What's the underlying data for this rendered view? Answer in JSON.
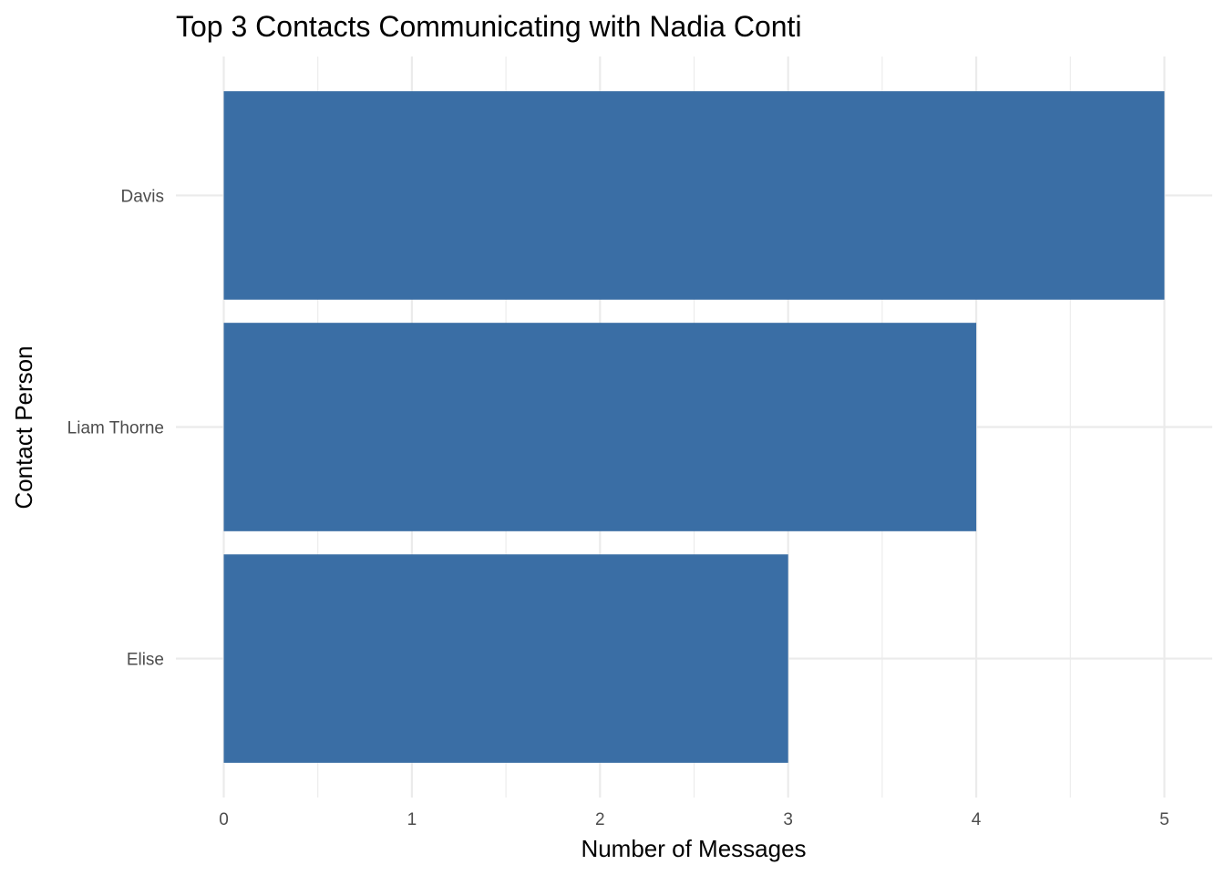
{
  "chart_data": {
    "type": "bar",
    "orientation": "horizontal",
    "title": "Top 3 Contacts Communicating with Nadia Conti",
    "xlabel": "Number of Messages",
    "ylabel": "Contact Person",
    "categories": [
      "Davis",
      "Liam Thorne",
      "Elise"
    ],
    "values": [
      5,
      4,
      3
    ],
    "xlim": [
      0,
      5
    ],
    "x_ticks": [
      0,
      1,
      2,
      3,
      4,
      5
    ],
    "grid": true,
    "legend": "none",
    "bar_color": "#3a6ea5",
    "grid_color": "#ebebeb"
  }
}
